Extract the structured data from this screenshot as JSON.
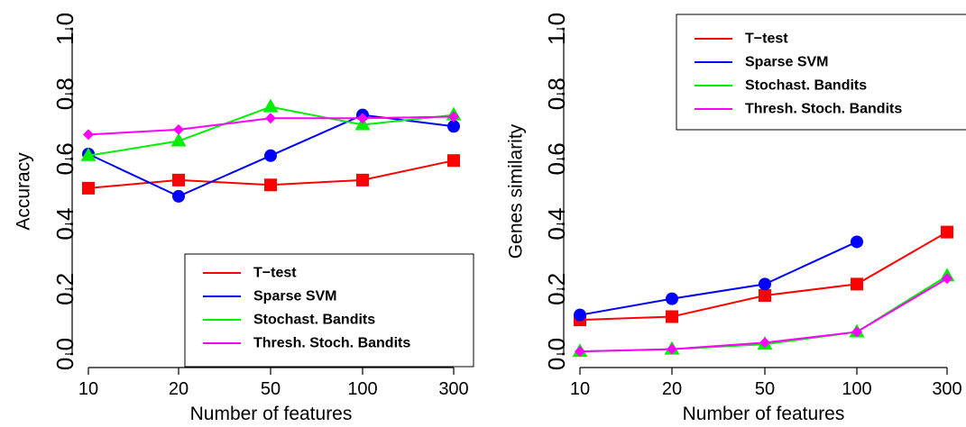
{
  "chart_data": [
    {
      "type": "line",
      "xlabel": "Number of features",
      "ylabel": "Accuracy",
      "categories": [
        "10",
        "20",
        "50",
        "100",
        "300"
      ],
      "ylim": [
        0.0,
        1.0
      ],
      "yticks": [
        "0.0",
        "0.2",
        "0.4",
        "0.6",
        "0.8",
        "1.0"
      ],
      "grid": false,
      "legend_position": "bottom-right",
      "series": [
        {
          "name": "T−test",
          "color": "#ff0000",
          "marker": "square",
          "values": [
            0.51,
            0.535,
            0.52,
            0.535,
            0.595
          ]
        },
        {
          "name": "Sparse SVM",
          "color": "#0000ff",
          "marker": "circle",
          "values": [
            0.615,
            0.485,
            0.61,
            0.735,
            0.7
          ]
        },
        {
          "name": "Stochast. Bandits",
          "color": "#00ee00",
          "marker": "triangle",
          "values": [
            0.61,
            0.655,
            0.76,
            0.705,
            0.735
          ]
        },
        {
          "name": "Thresh. Stoch. Bandits",
          "color": "#ff00ff",
          "marker": "diamond",
          "values": [
            0.675,
            0.69,
            0.725,
            0.725,
            0.73
          ]
        }
      ]
    },
    {
      "type": "line",
      "xlabel": "Number of features",
      "ylabel": "Genes similarity",
      "categories": [
        "10",
        "20",
        "50",
        "100",
        "300"
      ],
      "ylim": [
        0.0,
        1.0
      ],
      "yticks": [
        "0.0",
        "0.2",
        "0.4",
        "0.6",
        "0.8",
        "1.0"
      ],
      "grid": false,
      "legend_position": "top-right",
      "series": [
        {
          "name": "T−test",
          "color": "#ff0000",
          "marker": "square",
          "values": [
            0.105,
            0.115,
            0.18,
            0.215,
            0.375
          ]
        },
        {
          "name": "Sparse SVM",
          "color": "#0000ff",
          "marker": "circle",
          "values": [
            0.12,
            0.17,
            0.215,
            0.345,
            null
          ]
        },
        {
          "name": "Stochast. Bandits",
          "color": "#00ee00",
          "marker": "triangle",
          "values": [
            0.008,
            0.015,
            0.03,
            0.068,
            0.24
          ]
        },
        {
          "name": "Thresh. Stoch. Bandits",
          "color": "#ff00ff",
          "marker": "diamond",
          "values": [
            0.008,
            0.015,
            0.035,
            0.068,
            0.232
          ]
        }
      ]
    }
  ]
}
